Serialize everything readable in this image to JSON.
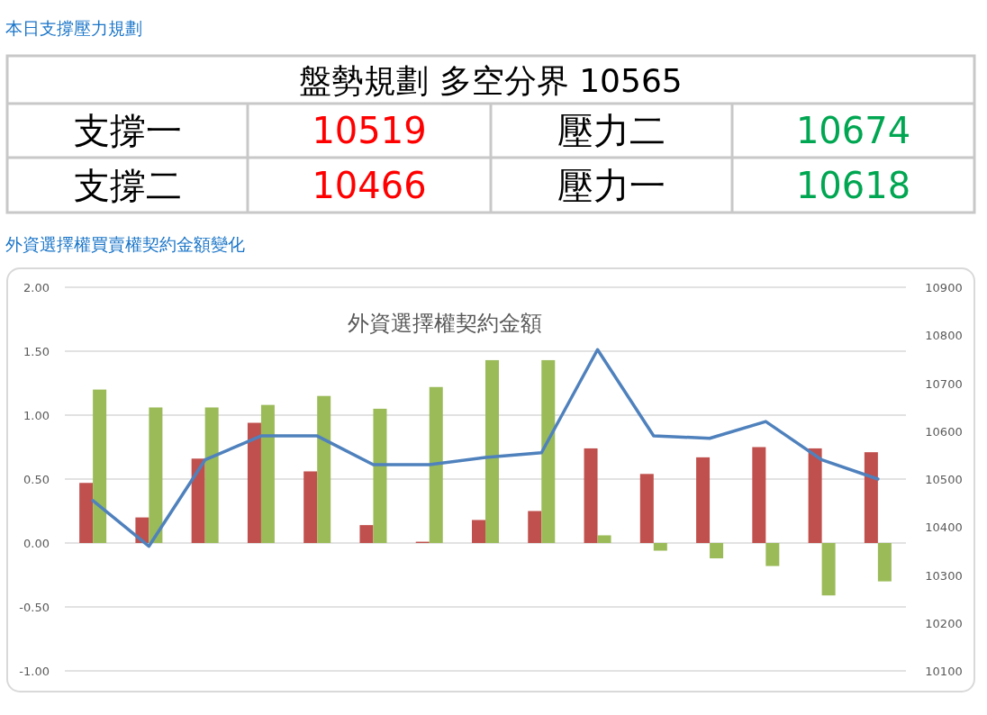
{
  "chart_data": [
    {
      "type": "other",
      "title": "本日支撐壓力規劃",
      "annotations": [
        "盤勢規劃 多空分界 10565",
        "支撐一",
        "10519",
        "壓力二",
        "10674",
        "支撐二",
        "10466",
        "壓力一",
        "10618"
      ],
      "colors": [
        "#000000",
        "#000000",
        "#ff0000",
        "#000000",
        "#00a651",
        "#000000",
        "#ff0000",
        "#000000",
        "#00a651"
      ]
    },
    {
      "type": "bar",
      "title": "外資選擇權買賣權契約金額變化",
      "subtitle": "外資選擇權契約金額",
      "categories": [
        null,
        null,
        null,
        null,
        null,
        null,
        null,
        null,
        null,
        null,
        null,
        null,
        null,
        null,
        null
      ],
      "series": [
        {
          "type": "bar",
          "color": "#c0504d",
          "values": [
            0.47,
            0.2,
            0.66,
            0.94,
            0.56,
            0.14,
            0.01,
            0.18,
            0.25,
            0.74,
            0.54,
            0.67,
            0.75,
            0.74,
            0.71
          ]
        },
        {
          "type": "bar",
          "color": "#9bbb59",
          "values": [
            1.2,
            1.06,
            1.06,
            1.08,
            1.15,
            1.05,
            1.22,
            1.43,
            1.43,
            0.06,
            -0.06,
            -0.12,
            -0.18,
            -0.41,
            -0.3
          ]
        },
        {
          "type": "line",
          "axis": "y2",
          "color": "#4f81bd",
          "values": [
            10455,
            10360,
            10540,
            10590,
            10590,
            10530,
            10530,
            10545,
            10555,
            10770,
            10590,
            10585,
            10620,
            10540,
            10500
          ]
        }
      ],
      "ylim": [
        -1,
        2
      ],
      "yticks": [
        {
          "value": -1,
          "label": "-1.00"
        },
        {
          "value": -0.5,
          "label": "-0.50"
        },
        {
          "value": 0,
          "label": "0.00"
        },
        {
          "value": 0.5,
          "label": "0.50"
        },
        {
          "value": 1,
          "label": "1.00"
        },
        {
          "value": 1.5,
          "label": "1.50"
        },
        {
          "value": 2,
          "label": "2.00"
        }
      ],
      "y2lim": [
        10100,
        10900
      ],
      "y2ticks": [
        10100,
        10200,
        10300,
        10400,
        10500,
        10600,
        10700,
        10800,
        10900
      ],
      "grid": "y"
    }
  ]
}
